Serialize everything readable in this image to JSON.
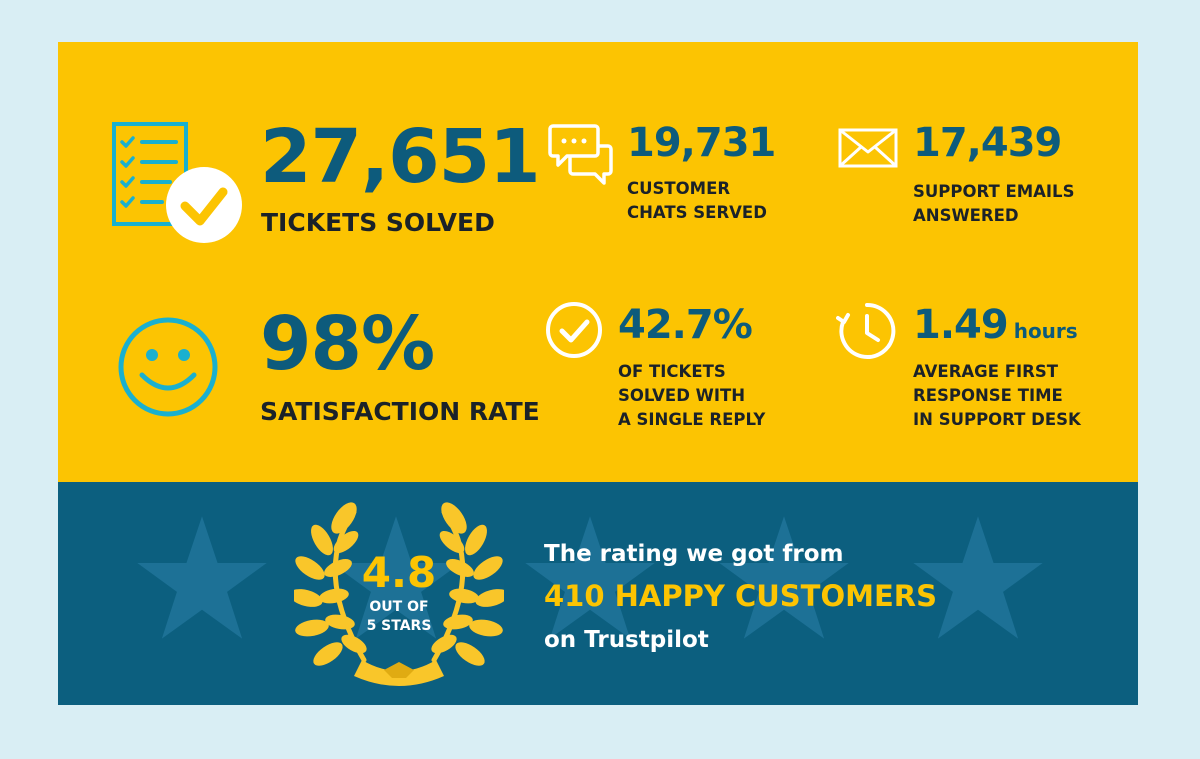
{
  "stats": {
    "tickets": {
      "value": "27,651",
      "label": "TICKETS SOLVED",
      "icon": "checklist-icon"
    },
    "chats": {
      "value": "19,731",
      "label_lines": [
        "CUSTOMER",
        "CHATS SERVED"
      ],
      "icon": "chat-bubbles-icon"
    },
    "emails": {
      "value": "17,439",
      "label_lines": [
        "SUPPORT EMAILS",
        "ANSWERED"
      ],
      "icon": "envelope-icon"
    },
    "satisfaction": {
      "value": "98%",
      "label": "SATISFACTION RATE",
      "icon": "smiley-icon"
    },
    "single_reply": {
      "value": "42.7%",
      "label_lines": [
        "OF TICKETS",
        "SOLVED WITH",
        "A SINGLE REPLY"
      ],
      "icon": "check-circle-icon"
    },
    "response": {
      "value": "1.49",
      "unit": "hours",
      "label_lines": [
        "AVERAGE FIRST",
        "RESPONSE TIME",
        "IN SUPPORT DESK"
      ],
      "icon": "clock-icon"
    }
  },
  "rating": {
    "value": "4.8",
    "sub_lines": [
      "OUT OF",
      "5 STARS"
    ],
    "stars_out_of": 5,
    "caption_line1": "The rating we got from",
    "caption_highlight": "410 HAPPY CUSTOMERS",
    "caption_line3": "on Trustpilot",
    "icon": "laurel-wreath-icon"
  },
  "colors": {
    "background": "#d9eef4",
    "yellow": "#fcc402",
    "blue": "#0c5f7f",
    "number": "#0d5b7c",
    "label": "#1b2229",
    "icon_cyan": "#1ab0cf"
  }
}
